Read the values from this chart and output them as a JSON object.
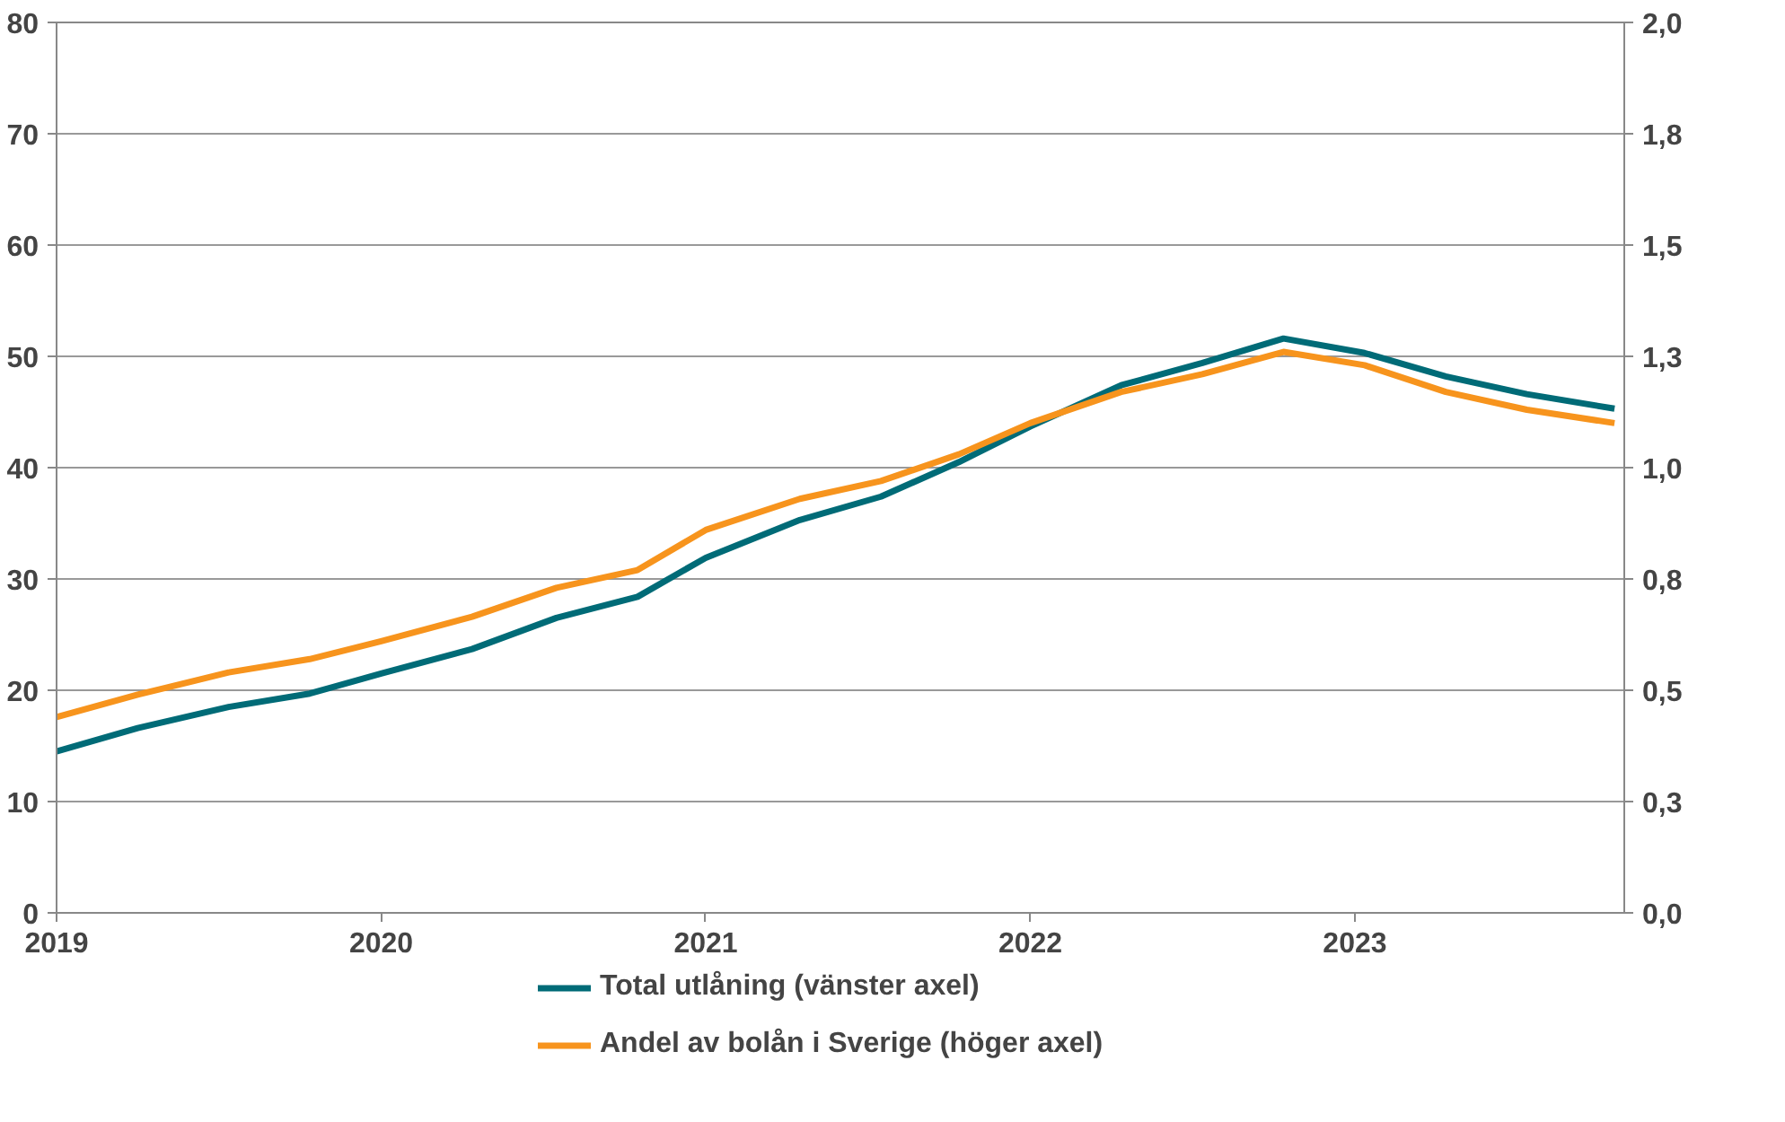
{
  "chart_data": {
    "type": "line",
    "x": [
      2019.0,
      2019.25,
      2019.53,
      2019.78,
      2020.0,
      2020.28,
      2020.54,
      2020.79,
      2021.0,
      2021.29,
      2021.54,
      2021.78,
      2022.0,
      2022.28,
      2022.53,
      2022.78,
      2023.03,
      2023.28,
      2023.53,
      2023.8
    ],
    "series": [
      {
        "name": "Total utlåning (vänster axel)",
        "color": "#006b77",
        "values": [
          14.5,
          16.6,
          18.5,
          19.7,
          21.5,
          23.7,
          26.5,
          28.4,
          31.9,
          35.3,
          37.4,
          40.5,
          43.7,
          47.4,
          49.4,
          51.6,
          50.3,
          48.2,
          46.6,
          45.3
        ]
      },
      {
        "name": "Andel av bolån i Sverige (höger axel)",
        "color": "#f7941d",
        "axis": "y2",
        "values": [
          0.44,
          0.49,
          0.54,
          0.57,
          0.61,
          0.665,
          0.73,
          0.77,
          0.86,
          0.93,
          0.97,
          1.03,
          1.1,
          1.17,
          1.21,
          1.26,
          1.23,
          1.17,
          1.13,
          1.1
        ]
      }
    ],
    "xlim": [
      2019,
      2023.83
    ],
    "xticks": [
      2019,
      2020,
      2021,
      2022,
      2023
    ],
    "ylim": [
      0,
      80
    ],
    "yticks": [
      0,
      10,
      20,
      30,
      40,
      50,
      60,
      70,
      80
    ],
    "y2lim": [
      0,
      2
    ],
    "y2ticks": [
      {
        "value": 0,
        "label": "0,0"
      },
      {
        "value": 0.25,
        "label": "0,3"
      },
      {
        "value": 0.5,
        "label": "0,5"
      },
      {
        "value": 0.75,
        "label": "0,8"
      },
      {
        "value": 1.0,
        "label": "1,0"
      },
      {
        "value": 1.25,
        "label": "1,3"
      },
      {
        "value": 1.5,
        "label": "1,5"
      },
      {
        "value": 1.75,
        "label": "1,8"
      },
      {
        "value": 2.0,
        "label": "2,0"
      }
    ],
    "grid": "y",
    "legend": "bottom",
    "marker": "none",
    "line_style": "solid"
  }
}
